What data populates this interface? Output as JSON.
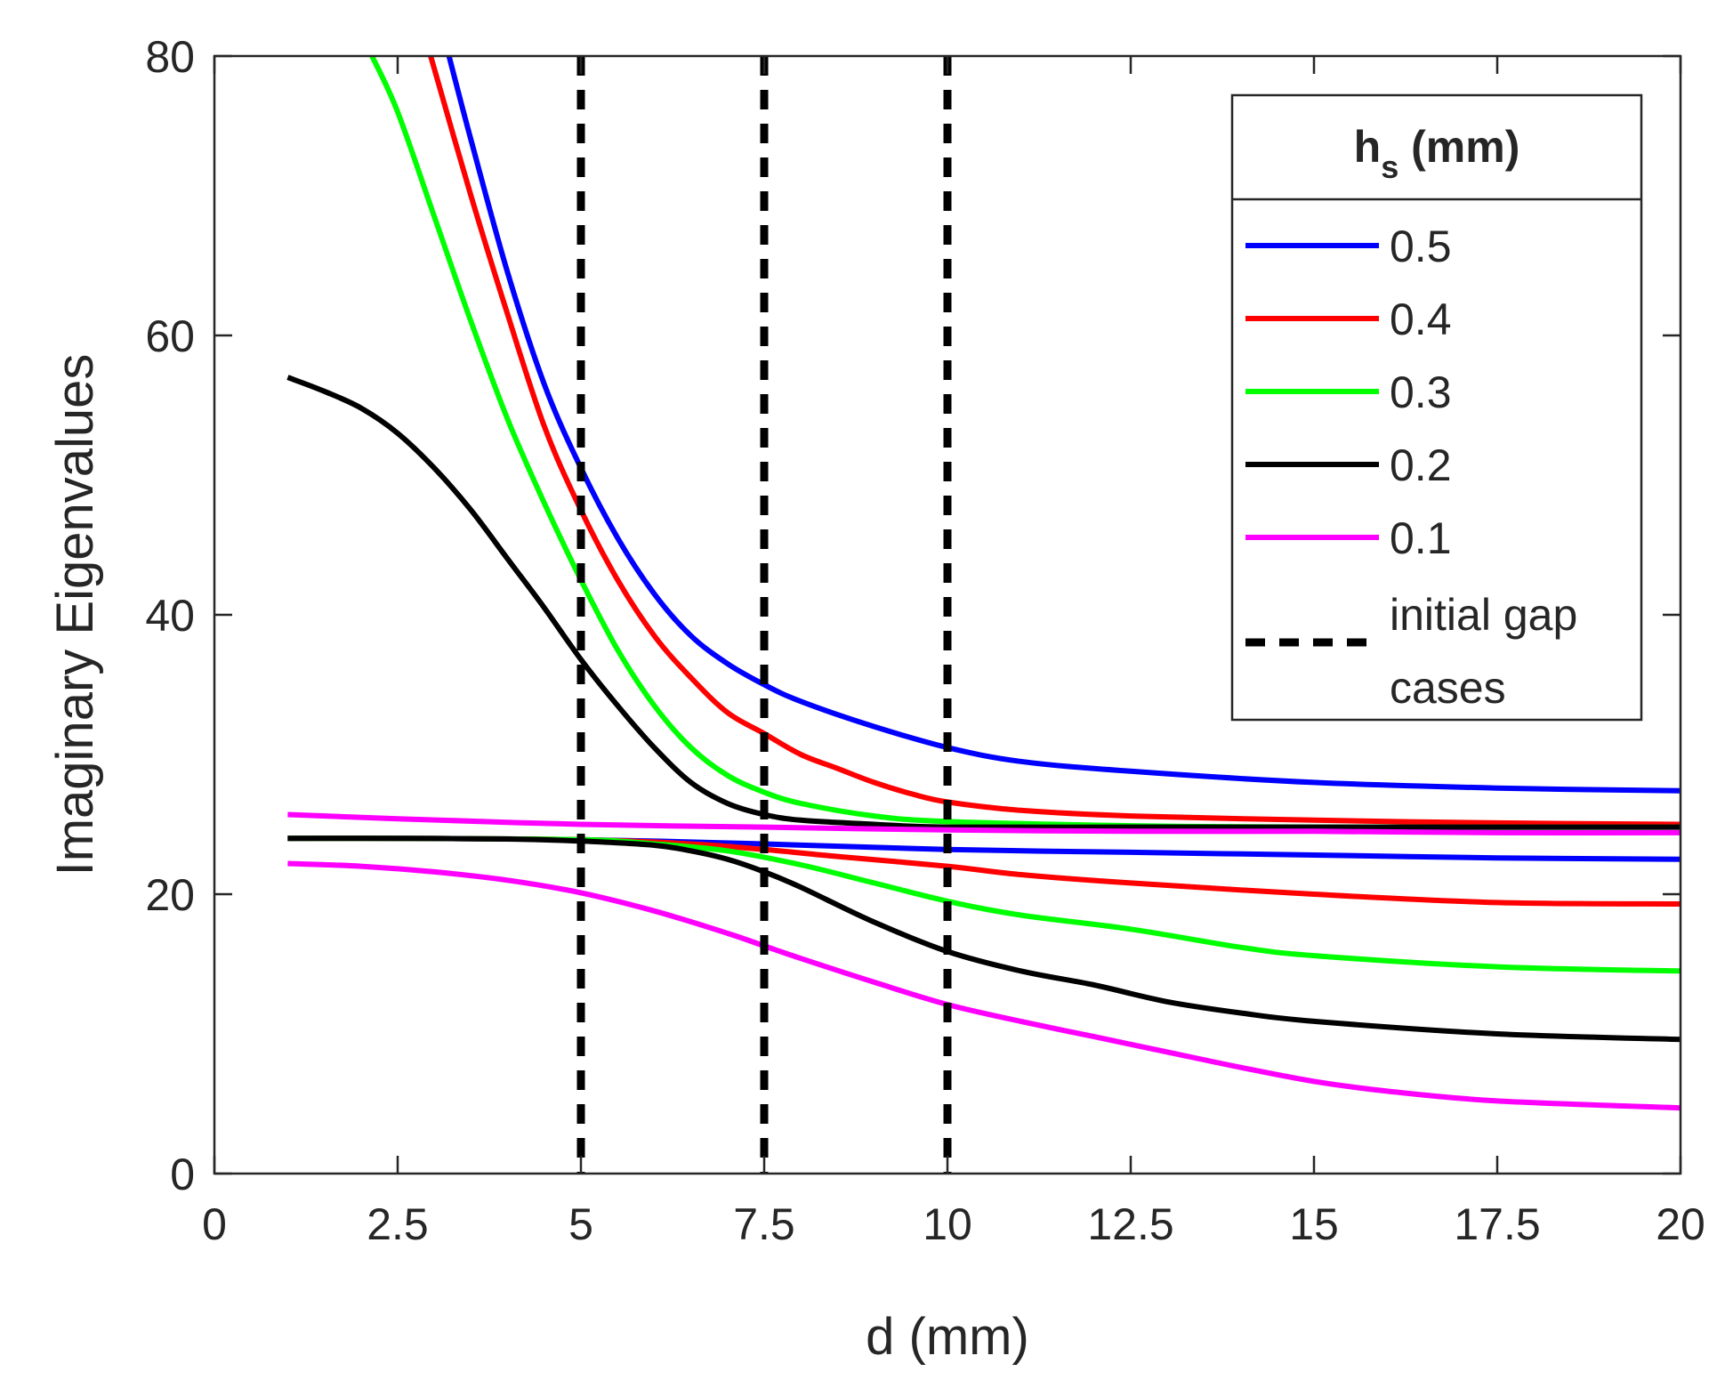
{
  "chart_data": {
    "type": "line",
    "title": "",
    "xlabel": "d (mm)",
    "ylabel": "Imaginary Eigenvalues",
    "xlim": [
      0,
      20
    ],
    "ylim": [
      0,
      80
    ],
    "x_ticks": [
      0,
      2.5,
      5,
      7.5,
      10,
      12.5,
      15,
      17.5,
      20
    ],
    "x_tick_labels": [
      "0",
      "2.5",
      "5",
      "7.5",
      "10",
      "12.5",
      "15",
      "17.5",
      "20"
    ],
    "y_ticks": [
      0,
      20,
      40,
      60,
      80
    ],
    "y_tick_labels": [
      "0",
      "20",
      "40",
      "60",
      "80"
    ],
    "grid": false,
    "legend": {
      "placement": "top-right",
      "title_main": "h",
      "title_sub": "s",
      "title_rest": " (mm)",
      "entries": [
        "0.5",
        "0.4",
        "0.3",
        "0.2",
        "0.1"
      ],
      "gap_label_line1": "initial gap",
      "gap_label_line2": "cases"
    },
    "vlines": {
      "name": "initial gap cases",
      "x": [
        5,
        7.5,
        10
      ],
      "color": "#000000",
      "style": "dashed"
    },
    "series": [
      {
        "name": "0.5",
        "branch": "upper",
        "color": "#0000ff",
        "points": [
          [
            3.2,
            80
          ],
          [
            3.5,
            74
          ],
          [
            4,
            64.5
          ],
          [
            4.5,
            56.5
          ],
          [
            5,
            50.5
          ],
          [
            5.5,
            45.5
          ],
          [
            6,
            41.5
          ],
          [
            6.5,
            38.5
          ],
          [
            7,
            36.5
          ],
          [
            7.5,
            35
          ],
          [
            8,
            33.8
          ],
          [
            9,
            32
          ],
          [
            10,
            30.5
          ],
          [
            11,
            29.5
          ],
          [
            12.5,
            28.8
          ],
          [
            15,
            28
          ],
          [
            17.5,
            27.6
          ],
          [
            20,
            27.4
          ]
        ]
      },
      {
        "name": "0.5",
        "branch": "lower",
        "color": "#0000ff",
        "points": [
          [
            1,
            24
          ],
          [
            2.5,
            24
          ],
          [
            5,
            23.9
          ],
          [
            7.5,
            23.6
          ],
          [
            10,
            23.2
          ],
          [
            12.5,
            23
          ],
          [
            15,
            22.8
          ],
          [
            17.5,
            22.6
          ],
          [
            20,
            22.5
          ]
        ]
      },
      {
        "name": "0.4",
        "branch": "upper",
        "color": "#ff0000",
        "points": [
          [
            2.95,
            80
          ],
          [
            3.5,
            70
          ],
          [
            4,
            61.5
          ],
          [
            4.5,
            53.5
          ],
          [
            5,
            47.5
          ],
          [
            5.5,
            42.5
          ],
          [
            6,
            38.5
          ],
          [
            6.5,
            35.5
          ],
          [
            7,
            33
          ],
          [
            7.5,
            31.5
          ],
          [
            8,
            30
          ],
          [
            8.5,
            29
          ],
          [
            9,
            28
          ],
          [
            9.5,
            27.2
          ],
          [
            10,
            26.6
          ],
          [
            11,
            26
          ],
          [
            12.5,
            25.6
          ],
          [
            15,
            25.3
          ],
          [
            17.5,
            25.1
          ],
          [
            20,
            25
          ]
        ]
      },
      {
        "name": "0.4",
        "branch": "lower",
        "color": "#ff0000",
        "points": [
          [
            1,
            24
          ],
          [
            2.5,
            24
          ],
          [
            5,
            23.9
          ],
          [
            6.5,
            23.6
          ],
          [
            7.5,
            23.2
          ],
          [
            8.5,
            22.7
          ],
          [
            10,
            22
          ],
          [
            11,
            21.4
          ],
          [
            12.5,
            20.8
          ],
          [
            15,
            20
          ],
          [
            17.5,
            19.4
          ],
          [
            20,
            19.3
          ]
        ]
      },
      {
        "name": "0.3",
        "branch": "upper",
        "color": "#00ff00",
        "points": [
          [
            2.15,
            80
          ],
          [
            2.5,
            76
          ],
          [
            3,
            68.5
          ],
          [
            3.5,
            61
          ],
          [
            4,
            54
          ],
          [
            4.5,
            48
          ],
          [
            5,
            42.5
          ],
          [
            5.5,
            37.5
          ],
          [
            6,
            33.5
          ],
          [
            6.5,
            30.5
          ],
          [
            7,
            28.5
          ],
          [
            7.5,
            27.3
          ],
          [
            8,
            26.5
          ],
          [
            9,
            25.6
          ],
          [
            10,
            25.2
          ],
          [
            12.5,
            24.9
          ],
          [
            15,
            24.8
          ],
          [
            20,
            24.8
          ]
        ]
      },
      {
        "name": "0.3",
        "branch": "lower",
        "color": "#00ff00",
        "points": [
          [
            1,
            24
          ],
          [
            2.5,
            24
          ],
          [
            5,
            23.9
          ],
          [
            6,
            23.6
          ],
          [
            7,
            23.1
          ],
          [
            8,
            22.1
          ],
          [
            9,
            20.8
          ],
          [
            10,
            19.5
          ],
          [
            11,
            18.5
          ],
          [
            12.5,
            17.5
          ],
          [
            14,
            16.2
          ],
          [
            15,
            15.6
          ],
          [
            17.5,
            14.8
          ],
          [
            20,
            14.5
          ]
        ]
      },
      {
        "name": "0.2",
        "branch": "upper",
        "color": "#000000",
        "points": [
          [
            1,
            57
          ],
          [
            1.5,
            56
          ],
          [
            2,
            54.8
          ],
          [
            2.5,
            53
          ],
          [
            3,
            50.5
          ],
          [
            3.5,
            47.5
          ],
          [
            4,
            44
          ],
          [
            4.5,
            40.5
          ],
          [
            5,
            36.8
          ],
          [
            5.5,
            33.5
          ],
          [
            6,
            30.5
          ],
          [
            6.5,
            28
          ],
          [
            7,
            26.5
          ],
          [
            7.5,
            25.7
          ],
          [
            8,
            25.3
          ],
          [
            9,
            25
          ],
          [
            10,
            24.8
          ],
          [
            12.5,
            24.8
          ],
          [
            15,
            24.8
          ],
          [
            20,
            24.8
          ]
        ]
      },
      {
        "name": "0.2",
        "branch": "lower",
        "color": "#000000",
        "points": [
          [
            1,
            24
          ],
          [
            2.5,
            24
          ],
          [
            4,
            23.95
          ],
          [
            5,
            23.8
          ],
          [
            6,
            23.5
          ],
          [
            6.5,
            23.1
          ],
          [
            7,
            22.5
          ],
          [
            7.5,
            21.6
          ],
          [
            8,
            20.5
          ],
          [
            9,
            18
          ],
          [
            10,
            15.9
          ],
          [
            11,
            14.5
          ],
          [
            12,
            13.5
          ],
          [
            13,
            12.3
          ],
          [
            14,
            11.5
          ],
          [
            15,
            10.9
          ],
          [
            17.5,
            10
          ],
          [
            20,
            9.6
          ]
        ]
      },
      {
        "name": "0.1",
        "branch": "upper",
        "color": "#ff00ff",
        "points": [
          [
            1,
            25.7
          ],
          [
            2.5,
            25.4
          ],
          [
            5,
            25
          ],
          [
            7.5,
            24.8
          ],
          [
            10,
            24.6
          ],
          [
            12.5,
            24.5
          ],
          [
            15,
            24.5
          ],
          [
            17.5,
            24.4
          ],
          [
            20,
            24.4
          ]
        ]
      },
      {
        "name": "0.1",
        "branch": "lower",
        "color": "#ff00ff",
        "points": [
          [
            1,
            22.2
          ],
          [
            2,
            22
          ],
          [
            3,
            21.6
          ],
          [
            4,
            21
          ],
          [
            5,
            20.1
          ],
          [
            6,
            18.8
          ],
          [
            7,
            17.2
          ],
          [
            7.5,
            16.3
          ],
          [
            8,
            15.4
          ],
          [
            9,
            13.7
          ],
          [
            10,
            12.1
          ],
          [
            11,
            10.9
          ],
          [
            12,
            9.8
          ],
          [
            13,
            8.7
          ],
          [
            14,
            7.6
          ],
          [
            15,
            6.6
          ],
          [
            16,
            5.9
          ],
          [
            17.5,
            5.2
          ],
          [
            20,
            4.7
          ]
        ]
      }
    ]
  }
}
